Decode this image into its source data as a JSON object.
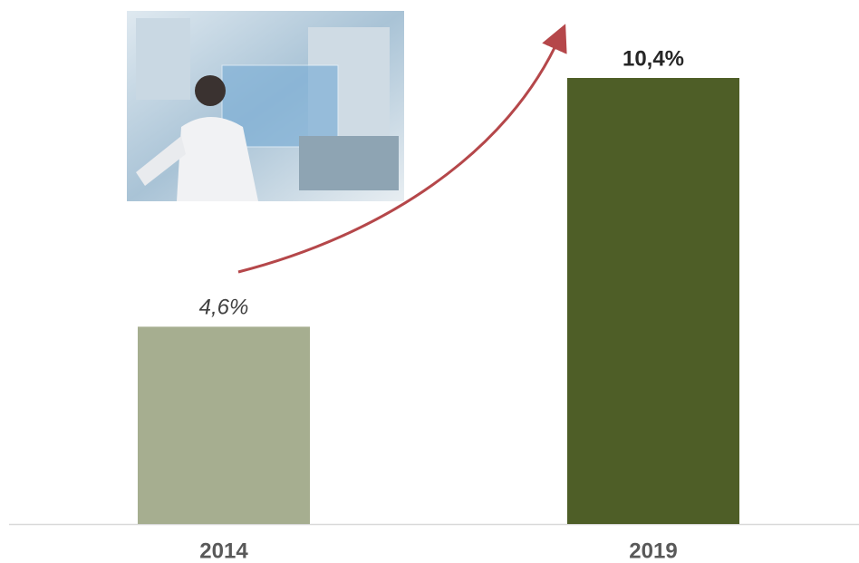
{
  "chart_data": {
    "type": "bar",
    "categories": [
      "2014",
      "2019"
    ],
    "values": [
      4.6,
      10.4
    ],
    "value_labels": [
      "4,6%",
      "10,4%"
    ],
    "colors": [
      "#a6ae90",
      "#4e5e27"
    ]
  }
}
